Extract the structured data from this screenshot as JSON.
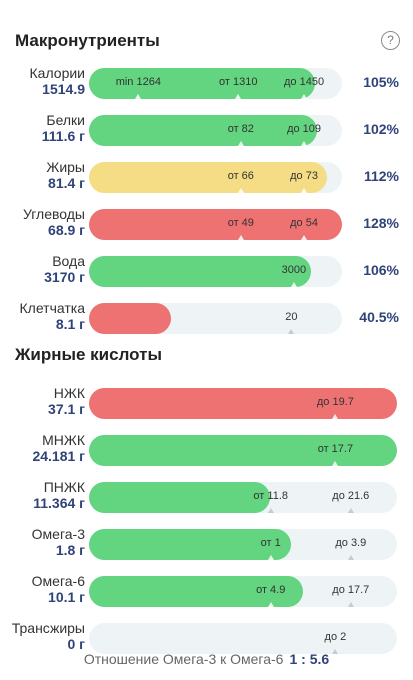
{
  "macros": {
    "title": "Макронутриенты",
    "rows": [
      {
        "name": "Калории",
        "amount": "1514.9",
        "percent": "105%",
        "fill_pct": 89.4,
        "color": "green",
        "markers": [
          {
            "text": "min 1264",
            "pos_pct": 19.5
          },
          {
            "text": "от 1310",
            "pos_pct": 59.0
          },
          {
            "text": "до 1450",
            "pos_pct": 85.0
          }
        ]
      },
      {
        "name": "Белки",
        "amount": "111.6 г",
        "percent": "102%",
        "fill_pct": 90.0,
        "color": "green",
        "markers": [
          {
            "text": "от 82",
            "pos_pct": 60.0
          },
          {
            "text": "до 109",
            "pos_pct": 85.0
          }
        ]
      },
      {
        "name": "Жиры",
        "amount": "81.4 г",
        "percent": "112%",
        "fill_pct": 94.0,
        "color": "yellow",
        "markers": [
          {
            "text": "от 66",
            "pos_pct": 60.0
          },
          {
            "text": "до 73",
            "pos_pct": 85.0
          }
        ]
      },
      {
        "name": "Углеводы",
        "amount": "68.9 г",
        "percent": "128%",
        "fill_pct": 100.0,
        "color": "red",
        "markers": [
          {
            "text": "от 49",
            "pos_pct": 60.0
          },
          {
            "text": "до 54",
            "pos_pct": 85.0
          }
        ]
      },
      {
        "name": "Вода",
        "amount": "3170 г",
        "percent": "106%",
        "fill_pct": 87.6,
        "color": "green",
        "markers": [
          {
            "text": "3000",
            "pos_pct": 81.0
          }
        ]
      },
      {
        "name": "Клетчатка",
        "amount": "8.1 г",
        "percent": "40.5%",
        "fill_pct": 32.6,
        "color": "red",
        "markers": [
          {
            "text": "20",
            "pos_pct": 80.0
          }
        ]
      }
    ]
  },
  "fatty_acids": {
    "title": "Жирные кислоты",
    "rows": [
      {
        "name": "НЖК",
        "amount": "37.1 г",
        "fill_pct": 100.0,
        "color": "red",
        "markers": [
          {
            "text": "до 19.7",
            "pos_pct": 80.0
          }
        ]
      },
      {
        "name": "МНЖК",
        "amount": "24.181 г",
        "fill_pct": 100.0,
        "color": "green",
        "markers": [
          {
            "text": "от 17.7",
            "pos_pct": 80.0
          }
        ]
      },
      {
        "name": "ПНЖК",
        "amount": "11.364 г",
        "fill_pct": 58.7,
        "color": "green",
        "markers": [
          {
            "text": "от 11.8",
            "pos_pct": 59.0
          },
          {
            "text": "до 21.6",
            "pos_pct": 85.0
          }
        ]
      },
      {
        "name": "Омега-3",
        "amount": "1.8 г",
        "fill_pct": 65.7,
        "color": "green",
        "markers": [
          {
            "text": "от 1",
            "pos_pct": 59.0
          },
          {
            "text": "до 3.9",
            "pos_pct": 85.0
          }
        ]
      },
      {
        "name": "Омега-6",
        "amount": "10.1 г",
        "fill_pct": 69.6,
        "color": "green",
        "markers": [
          {
            "text": "от 4.9",
            "pos_pct": 59.0
          },
          {
            "text": "до 17.7",
            "pos_pct": 85.0
          }
        ]
      },
      {
        "name": "Трансжиры",
        "amount": "0 г",
        "fill_pct": 0,
        "color": "green",
        "markers": [
          {
            "text": "до 2",
            "pos_pct": 80.0
          }
        ]
      }
    ]
  },
  "footer": {
    "ratio_label": "Отношение Омега-3 к Омега-6",
    "ratio_value": "1 : 5.6"
  },
  "icons": {
    "help": "question-circle-icon"
  },
  "help_glyph": "?"
}
